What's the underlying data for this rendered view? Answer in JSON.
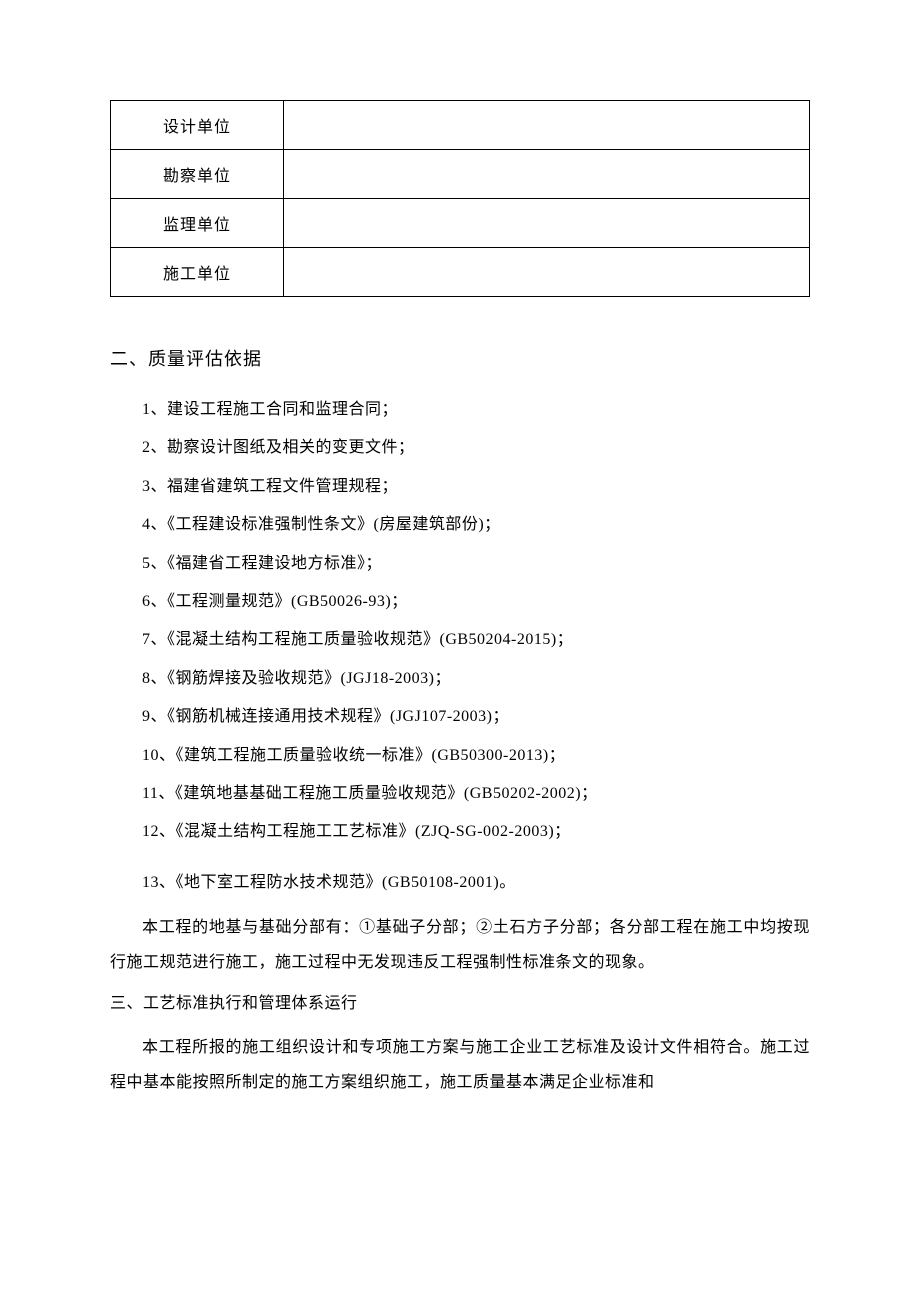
{
  "table": {
    "rows": [
      {
        "label": "设计单位",
        "value": ""
      },
      {
        "label": "勘察单位",
        "value": ""
      },
      {
        "label": "监理单位",
        "value": ""
      },
      {
        "label": "施工单位",
        "value": ""
      }
    ]
  },
  "section2": {
    "heading": "二、质量评估依据",
    "items": [
      "1、建设工程施工合同和监理合同；",
      "2、勘察设计图纸及相关的变更文件；",
      "3、福建省建筑工程文件管理规程；",
      "4、《工程建设标准强制性条文》(房屋建筑部份)；",
      "5、《福建省工程建设地方标准》；",
      "6、《工程测量规范》(GB50026-93)；",
      "7、《混凝土结构工程施工质量验收规范》(GB50204-2015)；",
      "8、《钢筋焊接及验收规范》(JGJ18-2003)；",
      "9、《钢筋机械连接通用技术规程》(JGJ107-2003)；",
      "10、《建筑工程施工质量验收统一标准》(GB50300-2013)；",
      "11、《建筑地基基础工程施工质量验收规范》(GB50202-2002)；",
      "12、《混凝土结构工程施工工艺标准》(ZJQ-SG-002-2003)；",
      "13、《地下室工程防水技术规范》(GB50108-2001)。"
    ],
    "paragraph": "本工程的地基与基础分部有：①基础子分部；②土石方子分部；各分部工程在施工中均按现行施工规范进行施工，施工过程中无发现违反工程强制性标准条文的现象。"
  },
  "section3": {
    "heading": "三、工艺标准执行和管理体系运行",
    "paragraph": "本工程所报的施工组织设计和专项施工方案与施工企业工艺标准及设计文件相符合。施工过程中基本能按照所制定的施工方案组织施工，施工质量基本满足企业标准和"
  }
}
